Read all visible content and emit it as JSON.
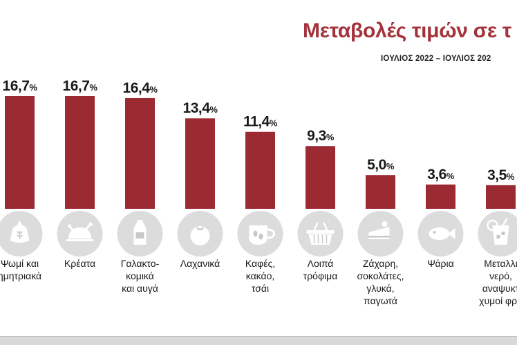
{
  "title": "Μεταβολές τιμών σε τ",
  "subtitle": "ΙΟΥΛΙΟΣ 2022 – ΙΟΥΛΙΟΣ 202",
  "colors": {
    "bar": "#9b2a33",
    "title": "#a3323a",
    "icon_circle": "#dcdcdc",
    "icon": "#ffffff",
    "bottom_band": "#d9d9d9"
  },
  "chart_data": {
    "type": "bar",
    "title": "Μεταβολές τιμών σε τ",
    "subtitle": "ΙΟΥΛΙΟΣ 2022 – ΙΟΥΛΙΟΣ 202",
    "categories": [
      [
        "Ψωμί και",
        "ημητριακά"
      ],
      [
        "Κρέατα"
      ],
      [
        "Γαλακτο-",
        "κομικά",
        "και αυγά"
      ],
      [
        "Λαχανικά"
      ],
      [
        "Καφές,",
        "κακάο,",
        "τσάι"
      ],
      [
        "Λοιπά",
        "τρόφιμα"
      ],
      [
        "Ζάχαρη,",
        "σοκολάτες,",
        "γλυκά,",
        "παγωτά"
      ],
      [
        "Ψάρια"
      ],
      [
        "Μεταλλι",
        "νερό,",
        "αναψυκτ",
        "χυμοί φρο"
      ]
    ],
    "icons": [
      "flour-sack-icon",
      "roast-chicken-icon",
      "milk-carton-icon",
      "tomato-icon",
      "coffee-cup-icon",
      "shopping-basket-icon",
      "cake-slice-icon",
      "fish-icon",
      "juice-glass-icon"
    ],
    "values": [
      16.7,
      16.7,
      16.4,
      13.4,
      11.4,
      9.3,
      5.0,
      3.6,
      3.5
    ],
    "value_labels": [
      "16,7",
      "16,7",
      "16,4",
      "13,4",
      "11,4",
      "9,3",
      "5,0",
      "3,6",
      "3,5"
    ],
    "unit": "%",
    "ylim": [
      0,
      16.7
    ],
    "grid": false,
    "xlabel": "",
    "ylabel": ""
  }
}
